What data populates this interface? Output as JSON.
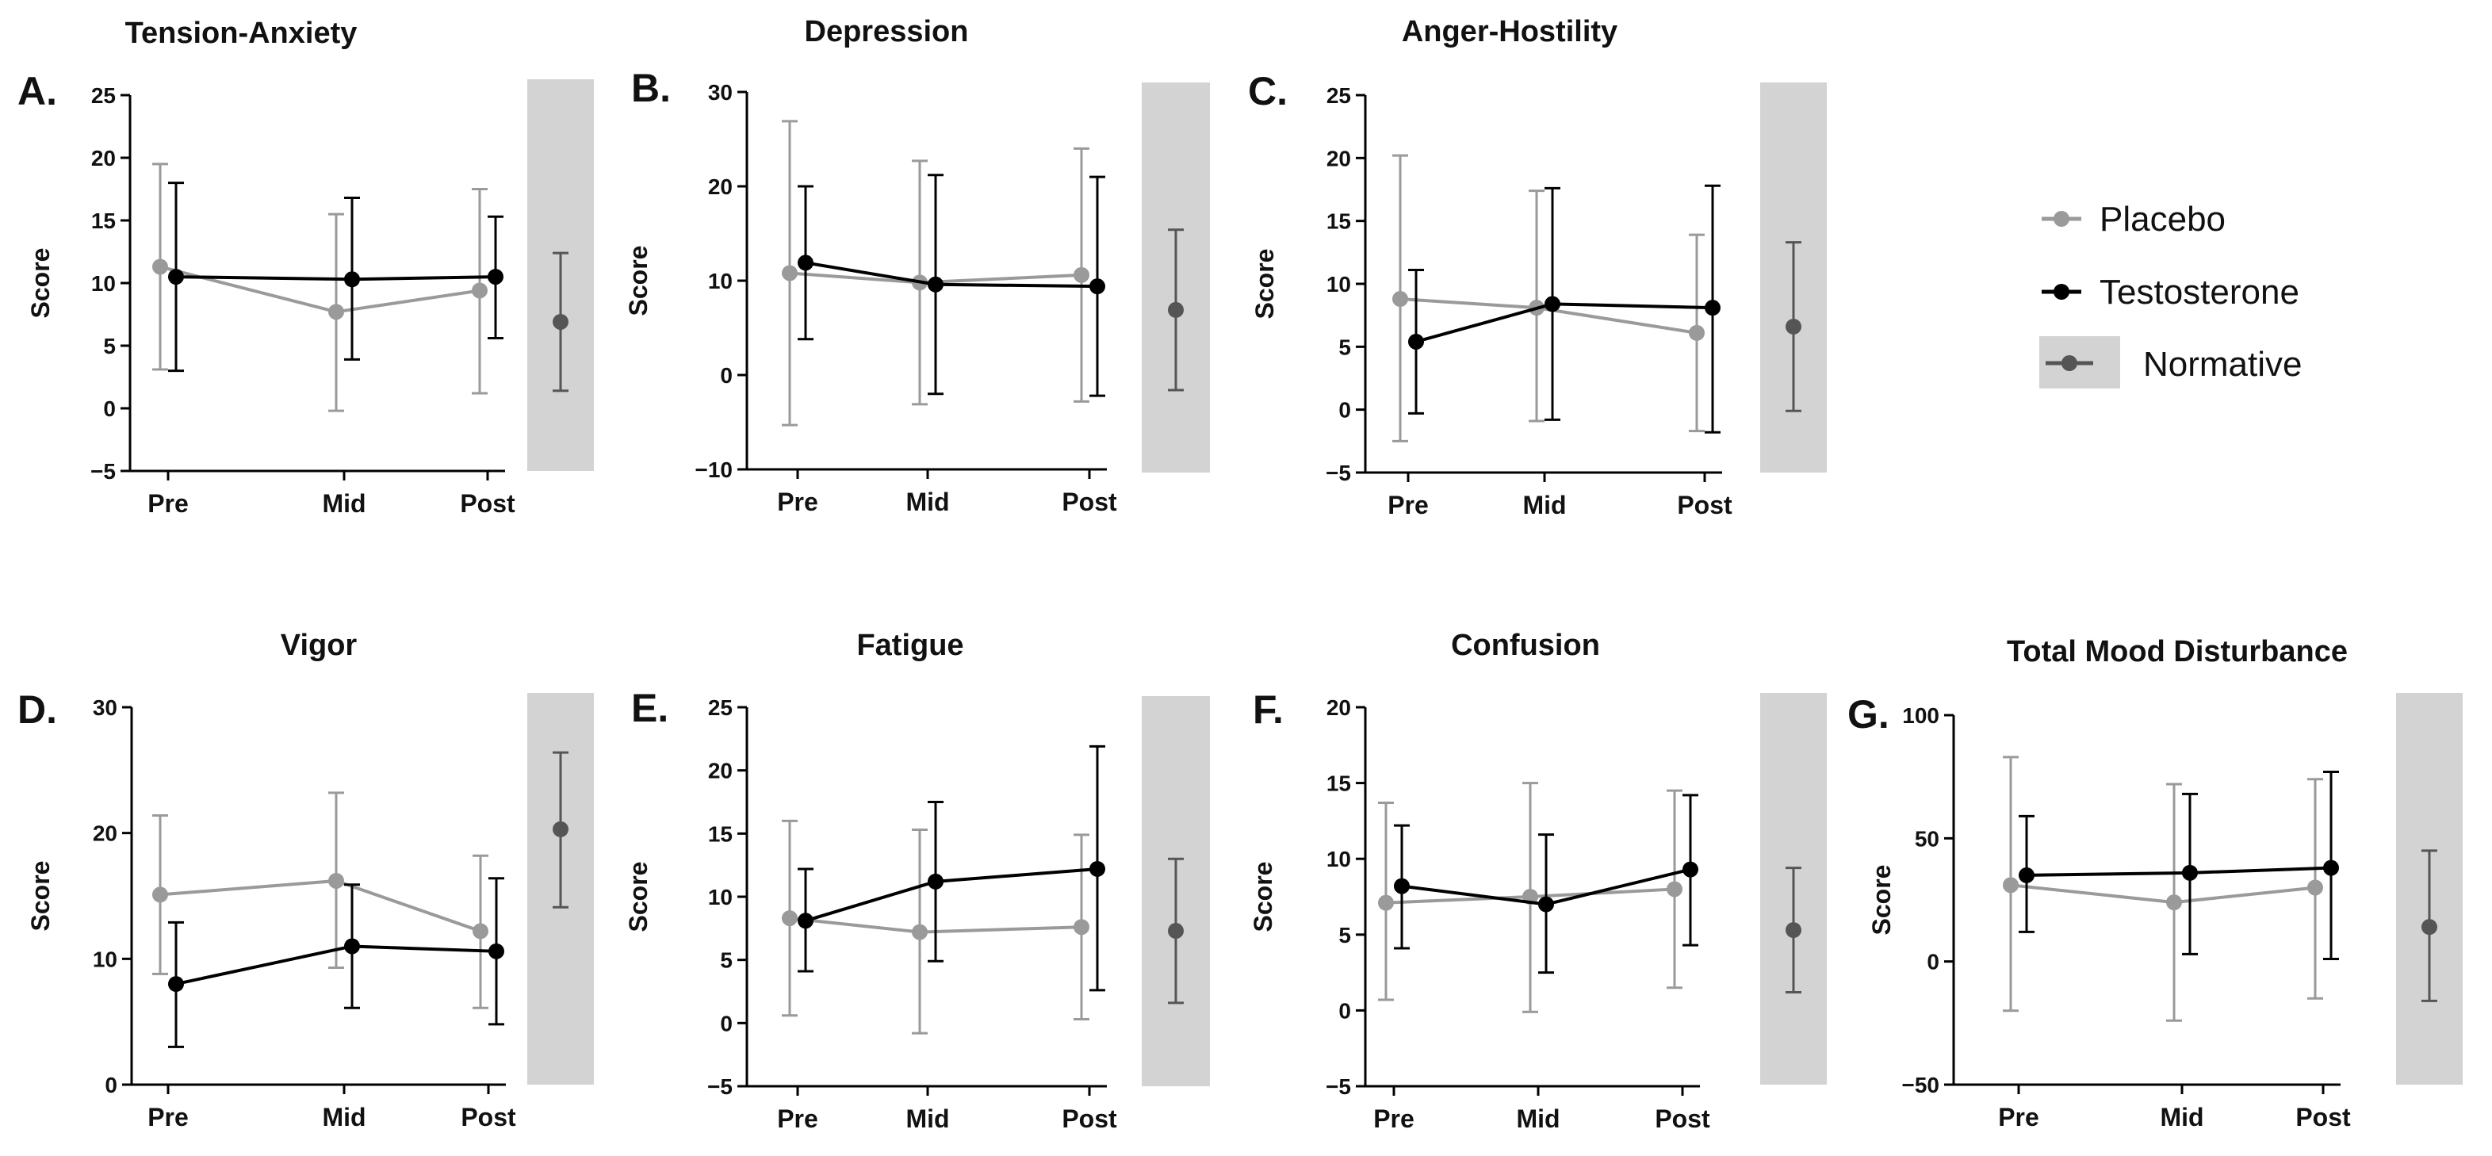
{
  "colors": {
    "placebo": "#9a9a9a",
    "testosterone": "#000000",
    "normative": "#555555",
    "normative_band": "#d3d3d3"
  },
  "legend": {
    "placebo": "Placebo",
    "testosterone": "Testosterone",
    "normative": "Normative",
    "position": "right"
  },
  "chart_data": [
    {
      "type": "line",
      "letter": "A.",
      "title": "Tension-Anxiety",
      "ylabel": "Score",
      "categories": [
        "Pre",
        "Mid",
        "Post"
      ],
      "ylim": [
        -5,
        25
      ],
      "yticks": [
        -5,
        0,
        5,
        10,
        15,
        20,
        25
      ],
      "series": [
        {
          "name": "Placebo",
          "values": [
            11.3,
            7.7,
            9.4
          ],
          "lower": [
            3.1,
            -0.2,
            1.2
          ],
          "upper": [
            19.5,
            15.5,
            17.5
          ]
        },
        {
          "name": "Testosterone",
          "values": [
            10.5,
            10.3,
            10.5
          ],
          "lower": [
            3.0,
            3.9,
            5.6
          ],
          "upper": [
            18.0,
            16.8,
            15.3
          ]
        }
      ],
      "normative": {
        "value": 6.9,
        "lower": 1.4,
        "upper": 12.4
      }
    },
    {
      "type": "line",
      "letter": "B.",
      "title": "Depression",
      "ylabel": "Score",
      "categories": [
        "Pre",
        "Mid",
        "Post"
      ],
      "ylim": [
        -10,
        30
      ],
      "yticks": [
        -10,
        0,
        10,
        20,
        30
      ],
      "series": [
        {
          "name": "Placebo",
          "values": [
            10.8,
            9.8,
            10.6
          ],
          "lower": [
            -5.3,
            -3.1,
            -2.8
          ],
          "upper": [
            26.9,
            22.7,
            24.0
          ]
        },
        {
          "name": "Testosterone",
          "values": [
            11.9,
            9.6,
            9.4
          ],
          "lower": [
            3.8,
            -2.0,
            -2.2
          ],
          "upper": [
            20.0,
            21.2,
            21.0
          ]
        }
      ],
      "normative": {
        "value": 6.9,
        "lower": -1.6,
        "upper": 15.4
      }
    },
    {
      "type": "line",
      "letter": "C.",
      "title": "Anger-Hostility",
      "ylabel": "Score",
      "categories": [
        "Pre",
        "Mid",
        "Post"
      ],
      "ylim": [
        -5,
        25
      ],
      "yticks": [
        -5,
        0,
        5,
        10,
        15,
        20,
        25
      ],
      "series": [
        {
          "name": "Placebo",
          "values": [
            8.8,
            8.1,
            6.1
          ],
          "lower": [
            -2.5,
            -0.9,
            -1.7
          ],
          "upper": [
            20.2,
            17.4,
            13.9
          ]
        },
        {
          "name": "Testosterone",
          "values": [
            5.4,
            8.4,
            8.1
          ],
          "lower": [
            -0.3,
            -0.8,
            -1.8
          ],
          "upper": [
            11.1,
            17.6,
            17.8
          ]
        }
      ],
      "normative": {
        "value": 6.6,
        "lower": -0.1,
        "upper": 13.3
      }
    },
    {
      "type": "line",
      "letter": "D.",
      "title": "Vigor",
      "ylabel": "Score",
      "categories": [
        "Pre",
        "Mid",
        "Post"
      ],
      "ylim": [
        0,
        30
      ],
      "yticks": [
        0,
        10,
        20,
        30
      ],
      "series": [
        {
          "name": "Placebo",
          "values": [
            15.1,
            16.2,
            12.2
          ],
          "lower": [
            8.8,
            9.3,
            6.1
          ],
          "upper": [
            21.4,
            23.2,
            18.2
          ]
        },
        {
          "name": "Testosterone",
          "values": [
            8.0,
            11.0,
            10.6
          ],
          "lower": [
            3.0,
            6.1,
            4.8
          ],
          "upper": [
            12.9,
            15.9,
            16.4
          ]
        }
      ],
      "normative": {
        "value": 20.3,
        "lower": 14.1,
        "upper": 26.4
      }
    },
    {
      "type": "line",
      "letter": "E.",
      "title": "Fatigue",
      "ylabel": "Score",
      "categories": [
        "Pre",
        "Mid",
        "Post"
      ],
      "ylim": [
        -5,
        25
      ],
      "yticks": [
        -5,
        0,
        5,
        10,
        15,
        20,
        25
      ],
      "series": [
        {
          "name": "Placebo",
          "values": [
            8.3,
            7.2,
            7.6
          ],
          "lower": [
            0.6,
            -0.8,
            0.3
          ],
          "upper": [
            16.0,
            15.3,
            14.9
          ]
        },
        {
          "name": "Testosterone",
          "values": [
            8.1,
            11.2,
            12.2
          ],
          "lower": [
            4.1,
            4.9,
            2.6
          ],
          "upper": [
            12.2,
            17.5,
            21.9
          ]
        }
      ],
      "normative": {
        "value": 7.3,
        "lower": 1.6,
        "upper": 13.0
      }
    },
    {
      "type": "line",
      "letter": "F.",
      "title": "Confusion",
      "ylabel": "Score",
      "categories": [
        "Pre",
        "Mid",
        "Post"
      ],
      "ylim": [
        -5,
        20
      ],
      "yticks": [
        -5,
        0,
        5,
        10,
        15,
        20
      ],
      "series": [
        {
          "name": "Placebo",
          "values": [
            7.1,
            7.5,
            8.0
          ],
          "lower": [
            0.7,
            -0.1,
            1.5
          ],
          "upper": [
            13.7,
            15.0,
            14.5
          ]
        },
        {
          "name": "Testosterone",
          "values": [
            8.2,
            7.0,
            9.3
          ],
          "lower": [
            4.1,
            2.5,
            4.3
          ],
          "upper": [
            12.2,
            11.6,
            14.2
          ]
        }
      ],
      "normative": {
        "value": 5.3,
        "lower": 1.2,
        "upper": 9.4
      }
    },
    {
      "type": "line",
      "letter": "G.",
      "title": "Total Mood Disturbance",
      "ylabel": "Score",
      "categories": [
        "Pre",
        "Mid",
        "Post"
      ],
      "ylim": [
        -50,
        100
      ],
      "yticks": [
        -50,
        0,
        50,
        100
      ],
      "series": [
        {
          "name": "Placebo",
          "values": [
            31,
            24,
            30
          ],
          "lower": [
            -20,
            -24,
            -15
          ],
          "upper": [
            83,
            72,
            74
          ]
        },
        {
          "name": "Testosterone",
          "values": [
            35,
            36,
            38
          ],
          "lower": [
            12,
            3,
            1
          ],
          "upper": [
            59,
            68,
            77
          ]
        }
      ],
      "normative": {
        "value": 14,
        "lower": -16,
        "upper": 45
      }
    }
  ]
}
